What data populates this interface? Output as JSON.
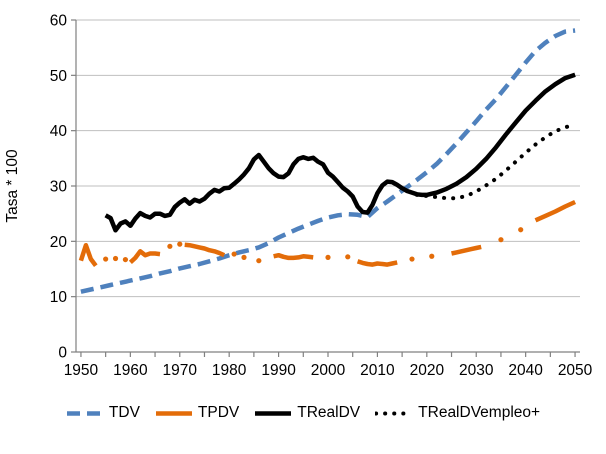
{
  "chart_data": {
    "type": "line",
    "title": "",
    "xlabel": "",
    "ylabel": "Tasa * 100",
    "xlim": [
      1949,
      2051
    ],
    "ylim": [
      0,
      60
    ],
    "y_ticks": [
      0,
      10,
      20,
      30,
      40,
      50,
      60
    ],
    "x_ticks_labeled": [
      1950,
      1960,
      1970,
      1980,
      1990,
      2000,
      2010,
      2020,
      2030,
      2040,
      2050
    ],
    "x_minor_tick_step": 5,
    "grid": "horizontal",
    "legend_position": "bottom",
    "axis_color": "#808080",
    "gridline_color": "#bfbfbf",
    "text_color": "#000000",
    "series": [
      {
        "name": "TDV",
        "color": "#4f81bd",
        "line_style": "dashed",
        "points": [
          [
            1950,
            10.9
          ],
          [
            1952,
            11.3
          ],
          [
            1954,
            11.7
          ],
          [
            1956,
            12.1
          ],
          [
            1958,
            12.5
          ],
          [
            1960,
            12.9
          ],
          [
            1962,
            13.3
          ],
          [
            1964,
            13.7
          ],
          [
            1966,
            14.2
          ],
          [
            1968,
            14.6
          ],
          [
            1970,
            15.1
          ],
          [
            1972,
            15.5
          ],
          [
            1974,
            15.9
          ],
          [
            1976,
            16.4
          ],
          [
            1978,
            16.9
          ],
          [
            1980,
            17.5
          ],
          [
            1982,
            18.0
          ],
          [
            1984,
            18.4
          ],
          [
            1986,
            18.9
          ],
          [
            1988,
            19.7
          ],
          [
            1990,
            20.7
          ],
          [
            1992,
            21.5
          ],
          [
            1994,
            22.3
          ],
          [
            1996,
            23.0
          ],
          [
            1998,
            23.7
          ],
          [
            2000,
            24.3
          ],
          [
            2002,
            24.7
          ],
          [
            2004,
            24.9
          ],
          [
            2006,
            24.8
          ],
          [
            2008,
            24.4
          ],
          [
            2010,
            26.0
          ],
          [
            2012,
            27.2
          ],
          [
            2014,
            28.5
          ],
          [
            2016,
            29.8
          ],
          [
            2018,
            31.1
          ],
          [
            2020,
            32.5
          ],
          [
            2022,
            34.0
          ],
          [
            2024,
            35.8
          ],
          [
            2026,
            37.7
          ],
          [
            2028,
            39.7
          ],
          [
            2030,
            41.7
          ],
          [
            2032,
            43.8
          ],
          [
            2034,
            45.7
          ],
          [
            2036,
            47.9
          ],
          [
            2038,
            50.1
          ],
          [
            2040,
            52.3
          ],
          [
            2042,
            54.4
          ],
          [
            2044,
            55.9
          ],
          [
            2046,
            57.1
          ],
          [
            2048,
            57.9
          ],
          [
            2050,
            58.1
          ]
        ]
      },
      {
        "name": "TPDV",
        "color": "#e36c09",
        "line_style": "solid",
        "segments": [
          [
            [
              1950,
              16.5
            ],
            [
              1951,
              19.3
            ],
            [
              1952,
              16.8
            ],
            [
              1953,
              15.6
            ]
          ],
          [
            [
              1955,
              16.8
            ]
          ],
          [
            [
              1957,
              16.9
            ]
          ],
          [
            [
              1959,
              16.7
            ]
          ],
          [
            [
              1960,
              16.2
            ],
            [
              1961,
              17.0
            ],
            [
              1962,
              18.2
            ],
            [
              1963,
              17.5
            ],
            [
              1964,
              17.8
            ],
            [
              1965,
              17.8
            ],
            [
              1966,
              17.7
            ]
          ],
          [
            [
              1968,
              19.1
            ]
          ],
          [
            [
              1970,
              19.5
            ]
          ],
          [
            [
              1971,
              19.4
            ],
            [
              1972,
              19.3
            ],
            [
              1973,
              19.1
            ],
            [
              1974,
              18.9
            ],
            [
              1975,
              18.7
            ],
            [
              1976,
              18.4
            ],
            [
              1977,
              18.2
            ],
            [
              1978,
              17.9
            ],
            [
              1979,
              17.5
            ]
          ],
          [
            [
              1981,
              17.7
            ]
          ],
          [
            [
              1983,
              17.1
            ]
          ],
          [
            [
              1986,
              16.5
            ]
          ],
          [
            [
              1989,
              17.3
            ],
            [
              1990,
              17.5
            ],
            [
              1991,
              17.2
            ],
            [
              1992,
              17.0
            ],
            [
              1993,
              17.0
            ],
            [
              1994,
              17.1
            ],
            [
              1995,
              17.3
            ],
            [
              1996,
              17.2
            ],
            [
              1997,
              17.1
            ]
          ],
          [
            [
              2000,
              17.1
            ]
          ],
          [
            [
              2004,
              17.2
            ]
          ],
          [
            [
              2006,
              16.4
            ],
            [
              2007,
              16.1
            ],
            [
              2008,
              15.9
            ],
            [
              2009,
              15.8
            ],
            [
              2010,
              16.0
            ],
            [
              2011,
              15.9
            ],
            [
              2012,
              15.8
            ],
            [
              2013,
              16.0
            ],
            [
              2014,
              16.2
            ]
          ],
          [
            [
              2017,
              16.8
            ]
          ],
          [
            [
              2021,
              17.3
            ]
          ],
          [
            [
              2025,
              17.8
            ],
            [
              2026,
              18.0
            ],
            [
              2027,
              18.2
            ],
            [
              2028,
              18.4
            ],
            [
              2029,
              18.6
            ],
            [
              2030,
              18.8
            ],
            [
              2031,
              19.0
            ]
          ],
          [
            [
              2035,
              20.3
            ]
          ],
          [
            [
              2039,
              22.1
            ]
          ],
          [
            [
              2042,
              23.8
            ],
            [
              2044,
              24.6
            ],
            [
              2046,
              25.4
            ],
            [
              2048,
              26.3
            ],
            [
              2050,
              27.1
            ]
          ]
        ]
      },
      {
        "name": "TRealDV",
        "color": "#000000",
        "line_style": "solid",
        "points": [
          [
            1955,
            24.7
          ],
          [
            1956,
            24.2
          ],
          [
            1957,
            22.0
          ],
          [
            1958,
            23.2
          ],
          [
            1959,
            23.6
          ],
          [
            1960,
            22.8
          ],
          [
            1961,
            24.1
          ],
          [
            1962,
            25.1
          ],
          [
            1963,
            24.6
          ],
          [
            1964,
            24.3
          ],
          [
            1965,
            25.0
          ],
          [
            1966,
            25.0
          ],
          [
            1967,
            24.6
          ],
          [
            1968,
            24.8
          ],
          [
            1969,
            26.2
          ],
          [
            1970,
            27.0
          ],
          [
            1971,
            27.6
          ],
          [
            1972,
            26.8
          ],
          [
            1973,
            27.5
          ],
          [
            1974,
            27.2
          ],
          [
            1975,
            27.7
          ],
          [
            1976,
            28.6
          ],
          [
            1977,
            29.3
          ],
          [
            1978,
            29.0
          ],
          [
            1979,
            29.6
          ],
          [
            1980,
            29.7
          ],
          [
            1981,
            30.4
          ],
          [
            1982,
            31.2
          ],
          [
            1983,
            32.1
          ],
          [
            1984,
            33.2
          ],
          [
            1985,
            34.8
          ],
          [
            1986,
            35.6
          ],
          [
            1987,
            34.4
          ],
          [
            1988,
            33.2
          ],
          [
            1989,
            32.3
          ],
          [
            1990,
            31.7
          ],
          [
            1991,
            31.6
          ],
          [
            1992,
            32.3
          ],
          [
            1993,
            33.9
          ],
          [
            1994,
            34.9
          ],
          [
            1995,
            35.2
          ],
          [
            1996,
            34.9
          ],
          [
            1997,
            35.1
          ],
          [
            1998,
            34.4
          ],
          [
            1999,
            33.9
          ],
          [
            2000,
            32.4
          ],
          [
            2001,
            31.7
          ],
          [
            2002,
            30.7
          ],
          [
            2003,
            29.7
          ],
          [
            2004,
            29.0
          ],
          [
            2005,
            28.1
          ],
          [
            2006,
            26.3
          ],
          [
            2007,
            25.3
          ],
          [
            2008,
            25.2
          ],
          [
            2009,
            26.6
          ],
          [
            2010,
            28.7
          ],
          [
            2011,
            30.1
          ],
          [
            2012,
            30.8
          ],
          [
            2013,
            30.7
          ],
          [
            2014,
            30.2
          ],
          [
            2015,
            29.6
          ],
          [
            2016,
            29.1
          ],
          [
            2017,
            28.8
          ],
          [
            2018,
            28.5
          ],
          [
            2019,
            28.4
          ],
          [
            2020,
            28.4
          ],
          [
            2021,
            28.6
          ],
          [
            2022,
            28.8
          ],
          [
            2024,
            29.5
          ],
          [
            2026,
            30.4
          ],
          [
            2028,
            31.6
          ],
          [
            2030,
            33.1
          ],
          [
            2032,
            34.9
          ],
          [
            2034,
            37.0
          ],
          [
            2036,
            39.3
          ],
          [
            2038,
            41.5
          ],
          [
            2040,
            43.6
          ],
          [
            2042,
            45.4
          ],
          [
            2044,
            47.1
          ],
          [
            2046,
            48.4
          ],
          [
            2048,
            49.5
          ],
          [
            2050,
            50.1
          ]
        ]
      },
      {
        "name": "TRealDVempleo+",
        "color": "#000000",
        "line_style": "dotted",
        "points": [
          [
            2018,
            28.4
          ],
          [
            2020,
            28.2
          ],
          [
            2022,
            28.0
          ],
          [
            2024,
            27.8
          ],
          [
            2026,
            27.8
          ],
          [
            2028,
            28.2
          ],
          [
            2030,
            29.0
          ],
          [
            2032,
            30.1
          ],
          [
            2034,
            31.3
          ],
          [
            2036,
            32.8
          ],
          [
            2038,
            34.4
          ],
          [
            2040,
            36.0
          ],
          [
            2042,
            37.5
          ],
          [
            2044,
            38.8
          ],
          [
            2046,
            39.9
          ],
          [
            2048,
            40.6
          ],
          [
            2050,
            41.1
          ]
        ]
      }
    ]
  }
}
